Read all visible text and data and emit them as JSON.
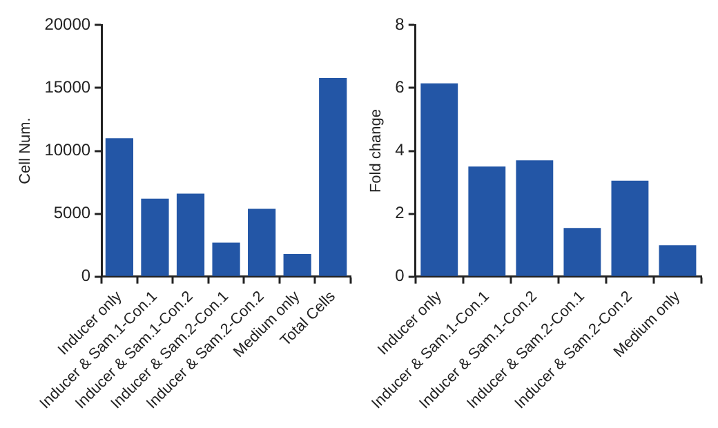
{
  "chart_data": [
    {
      "type": "bar",
      "ylabel": "Cell Num.",
      "categories": [
        "Inducer only",
        "Inducer & Sam.1-Con.1",
        "Inducer & Sam.1-Con.2",
        "Inducer & Sam.2-Con.1",
        "Inducer & Sam.2-Con.2",
        "Medium only",
        "Total Cells"
      ],
      "values": [
        11000,
        6200,
        6600,
        2700,
        5400,
        1800,
        15800
      ],
      "color": "#2356a6",
      "ylim": [
        0,
        20000
      ],
      "yticks": [
        0,
        5000,
        10000,
        15000,
        20000
      ],
      "grid": false,
      "legend": false
    },
    {
      "type": "bar",
      "ylabel": "Fold change",
      "categories": [
        "Inducer only",
        "Inducer & Sam.1-Con.1",
        "Inducer & Sam.1-Con.2",
        "Inducer & Sam.2-Con.1",
        "Inducer & Sam.2-Con.2",
        "Medium only"
      ],
      "values": [
        6.15,
        3.5,
        3.7,
        1.55,
        3.05,
        1.0
      ],
      "color": "#2356a6",
      "ylim": [
        0,
        8
      ],
      "yticks": [
        0,
        2,
        4,
        6,
        8
      ],
      "grid": false,
      "legend": false
    }
  ]
}
